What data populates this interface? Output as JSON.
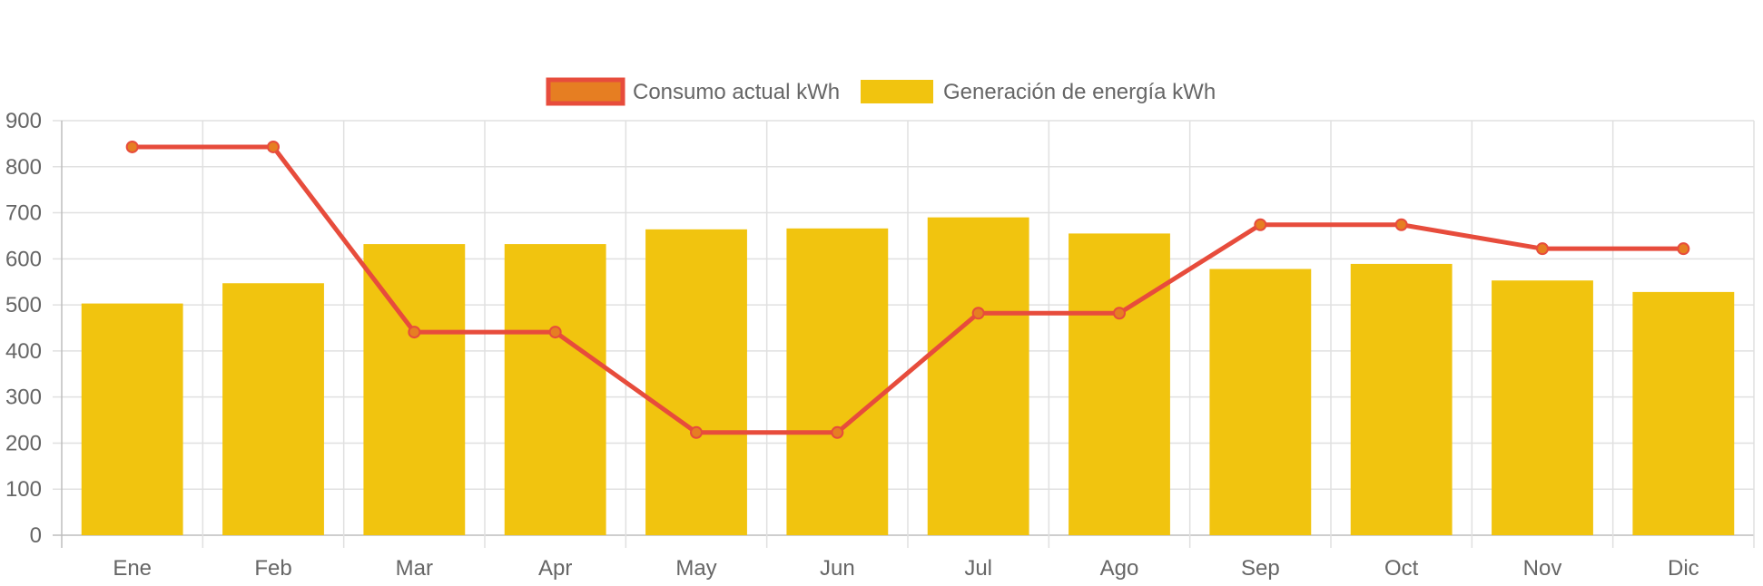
{
  "chart_data": {
    "type": "bar",
    "categories": [
      "Ene",
      "Feb",
      "Mar",
      "Apr",
      "May",
      "Jun",
      "Jul",
      "Ago",
      "Sep",
      "Oct",
      "Nov",
      "Dic"
    ],
    "series": [
      {
        "name": "Consumo actual kWh",
        "type": "line",
        "values": [
          843,
          843,
          441,
          441,
          223,
          223,
          482,
          482,
          674,
          674,
          622,
          622
        ],
        "color": "#e74c3c",
        "point_color": "#e67e22"
      },
      {
        "name": "Generación de energía kWh",
        "type": "bar",
        "values": [
          503,
          547,
          632,
          632,
          664,
          666,
          690,
          655,
          578,
          589,
          553,
          528
        ],
        "color": "#f1c40f"
      }
    ],
    "y_ticks": [
      "0",
      "100",
      "200",
      "300",
      "400",
      "500",
      "600",
      "700",
      "800",
      "900"
    ],
    "ylim": [
      0,
      900
    ],
    "grid": true,
    "legend_position": "top"
  }
}
